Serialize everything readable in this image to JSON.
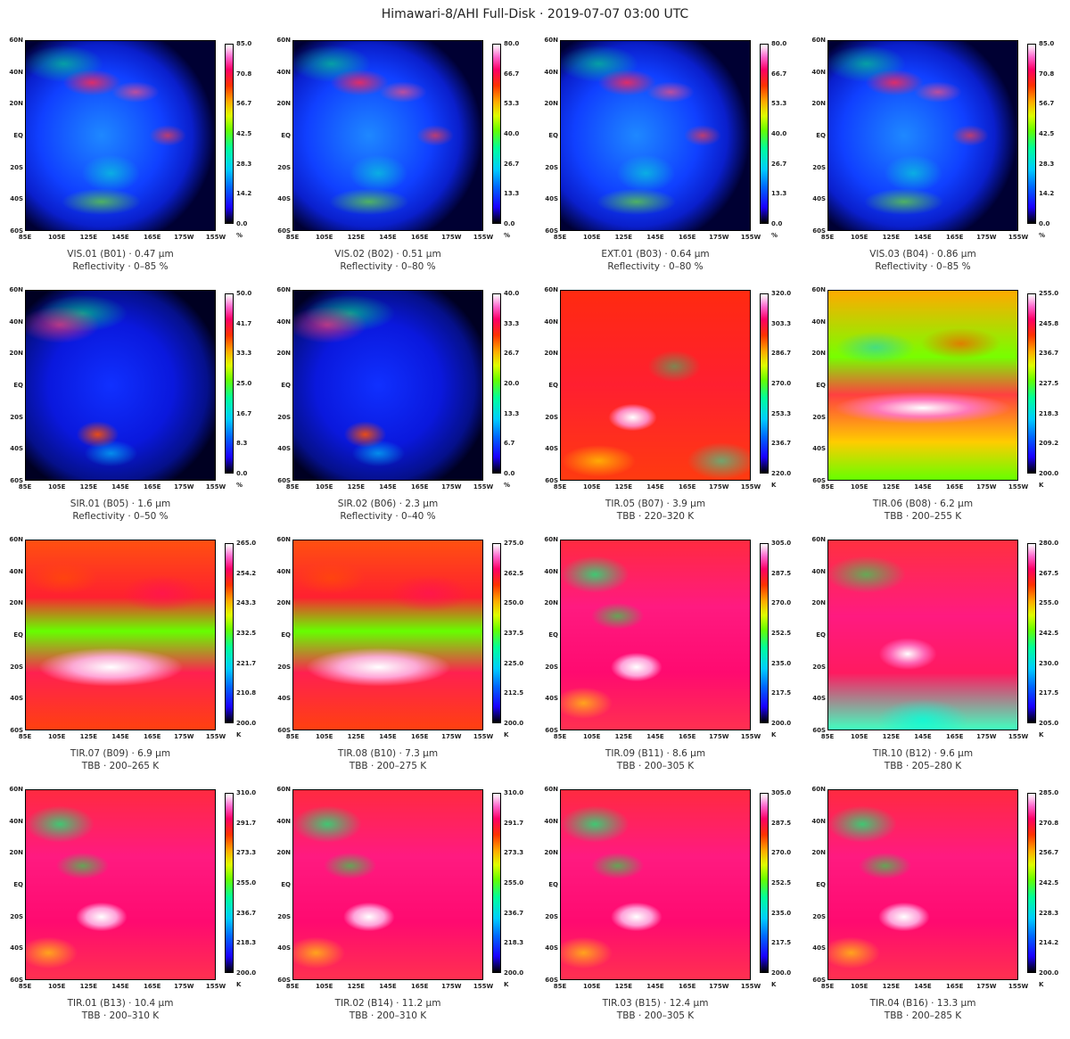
{
  "title": "Himawari-8/AHI Full-Disk · 2019-07-07 03:00 UTC",
  "lat_labels": [
    "60N",
    "40N",
    "20N",
    "EQ",
    "20S",
    "40S",
    "60S"
  ],
  "lon_labels": [
    "85E",
    "105E",
    "125E",
    "145E",
    "165E",
    "175W",
    "155W"
  ],
  "panels": [
    {
      "caption": "VIS.01 (B01) · 0.47 µm",
      "subcaption": "Reflectivity · 0–85 %",
      "unit": "%",
      "ticks": [
        "85.0",
        "70.8",
        "56.7",
        "42.5",
        "28.3",
        "14.2",
        "0.0"
      ],
      "style": "vis"
    },
    {
      "caption": "VIS.02 (B02) · 0.51 µm",
      "subcaption": "Reflectivity · 0–80 %",
      "unit": "%",
      "ticks": [
        "80.0",
        "66.7",
        "53.3",
        "40.0",
        "26.7",
        "13.3",
        "0.0"
      ],
      "style": "vis"
    },
    {
      "caption": "EXT.01 (B03) · 0.64 µm",
      "subcaption": "Reflectivity · 0–80 %",
      "unit": "%",
      "ticks": [
        "80.0",
        "66.7",
        "53.3",
        "40.0",
        "26.7",
        "13.3",
        "0.0"
      ],
      "style": "vis"
    },
    {
      "caption": "VIS.03 (B04) · 0.86 µm",
      "subcaption": "Reflectivity · 0–85 %",
      "unit": "%",
      "ticks": [
        "85.0",
        "70.8",
        "56.7",
        "42.5",
        "28.3",
        "14.2",
        "0.0"
      ],
      "style": "vis"
    },
    {
      "caption": "SIR.01 (B05) · 1.6 µm",
      "subcaption": "Reflectivity · 0–50 %",
      "unit": "%",
      "ticks": [
        "50.0",
        "41.7",
        "33.3",
        "25.0",
        "16.7",
        "8.3",
        "0.0"
      ],
      "style": "sir"
    },
    {
      "caption": "SIR.02 (B06) · 2.3 µm",
      "subcaption": "Reflectivity · 0–40 %",
      "unit": "%",
      "ticks": [
        "40.0",
        "33.3",
        "26.7",
        "20.0",
        "13.3",
        "6.7",
        "0.0"
      ],
      "style": "sir"
    },
    {
      "caption": "TIR.05 (B07) · 3.9 µm",
      "subcaption": "TBB · 220–320 K",
      "unit": "K",
      "ticks": [
        "320.0",
        "303.3",
        "286.7",
        "270.0",
        "253.3",
        "236.7",
        "220.0"
      ],
      "style": "tir-red"
    },
    {
      "caption": "TIR.06 (B08) · 6.2 µm",
      "subcaption": "TBB · 200–255 K",
      "unit": "K",
      "ticks": [
        "255.0",
        "245.8",
        "236.7",
        "227.5",
        "218.3",
        "209.2",
        "200.0"
      ],
      "style": "wv"
    },
    {
      "caption": "TIR.07 (B09) · 6.9 µm",
      "subcaption": "TBB · 200–265 K",
      "unit": "K",
      "ticks": [
        "265.0",
        "254.2",
        "243.3",
        "232.5",
        "221.7",
        "210.8",
        "200.0"
      ],
      "style": "wv2"
    },
    {
      "caption": "TIR.08 (B10) · 7.3 µm",
      "subcaption": "TBB · 200–275 K",
      "unit": "K",
      "ticks": [
        "275.0",
        "262.5",
        "250.0",
        "237.5",
        "225.0",
        "212.5",
        "200.0"
      ],
      "style": "wv2"
    },
    {
      "caption": "TIR.09 (B11) · 8.6 µm",
      "subcaption": "TBB · 200–305 K",
      "unit": "K",
      "ticks": [
        "305.0",
        "287.5",
        "270.0",
        "252.5",
        "235.0",
        "217.5",
        "200.0"
      ],
      "style": "tir"
    },
    {
      "caption": "TIR.10 (B12) · 9.6 µm",
      "subcaption": "TBB · 205–280 K",
      "unit": "K",
      "ticks": [
        "280.0",
        "267.5",
        "255.0",
        "242.5",
        "230.0",
        "217.5",
        "205.0"
      ],
      "style": "tir-o3"
    },
    {
      "caption": "TIR.01 (B13) · 10.4 µm",
      "subcaption": "TBB · 200–310 K",
      "unit": "K",
      "ticks": [
        "310.0",
        "291.7",
        "273.3",
        "255.0",
        "236.7",
        "218.3",
        "200.0"
      ],
      "style": "tir"
    },
    {
      "caption": "TIR.02 (B14) · 11.2 µm",
      "subcaption": "TBB · 200–310 K",
      "unit": "K",
      "ticks": [
        "310.0",
        "291.7",
        "273.3",
        "255.0",
        "236.7",
        "218.3",
        "200.0"
      ],
      "style": "tir"
    },
    {
      "caption": "TIR.03 (B15) · 12.4 µm",
      "subcaption": "TBB · 200–305 K",
      "unit": "K",
      "ticks": [
        "305.0",
        "287.5",
        "270.0",
        "252.5",
        "235.0",
        "217.5",
        "200.0"
      ],
      "style": "tir"
    },
    {
      "caption": "TIR.04 (B16) · 13.3 µm",
      "subcaption": "TBB · 200–285 K",
      "unit": "K",
      "ticks": [
        "285.0",
        "270.8",
        "256.7",
        "242.5",
        "228.3",
        "214.2",
        "200.0"
      ],
      "style": "tir"
    }
  ]
}
